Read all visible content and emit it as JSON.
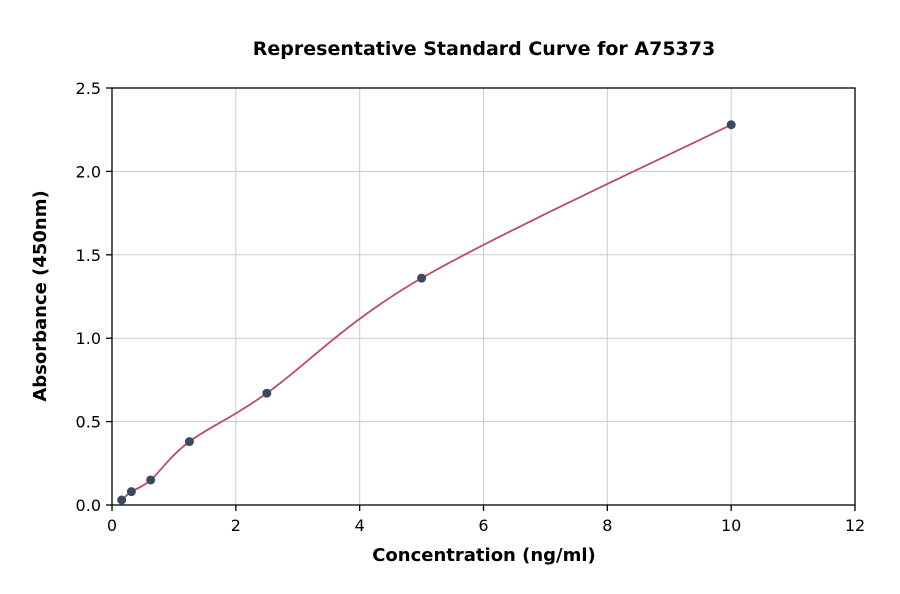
{
  "title": "Representative Standard Curve for A75373",
  "chart_data": {
    "type": "scatter",
    "title": "Representative Standard Curve for A75373",
    "xlabel": "Concentration (ng/ml)",
    "ylabel": "Absorbance (450nm)",
    "xlim": [
      0,
      12
    ],
    "ylim": [
      0,
      2.5
    ],
    "xticks": [
      0,
      2,
      4,
      6,
      8,
      10,
      12
    ],
    "yticks": [
      0.0,
      0.5,
      1.0,
      1.5,
      2.0,
      2.5
    ],
    "grid": true,
    "legend": "none",
    "points": {
      "x": [
        0.156,
        0.313,
        0.625,
        1.25,
        2.5,
        5,
        10
      ],
      "y": [
        0.03,
        0.08,
        0.15,
        0.38,
        0.67,
        1.36,
        2.28
      ]
    },
    "fit_line_color": "#c04a66",
    "point_color": "#3b4a63",
    "grid_color": "#cccccc",
    "spine_color": "#000000"
  }
}
